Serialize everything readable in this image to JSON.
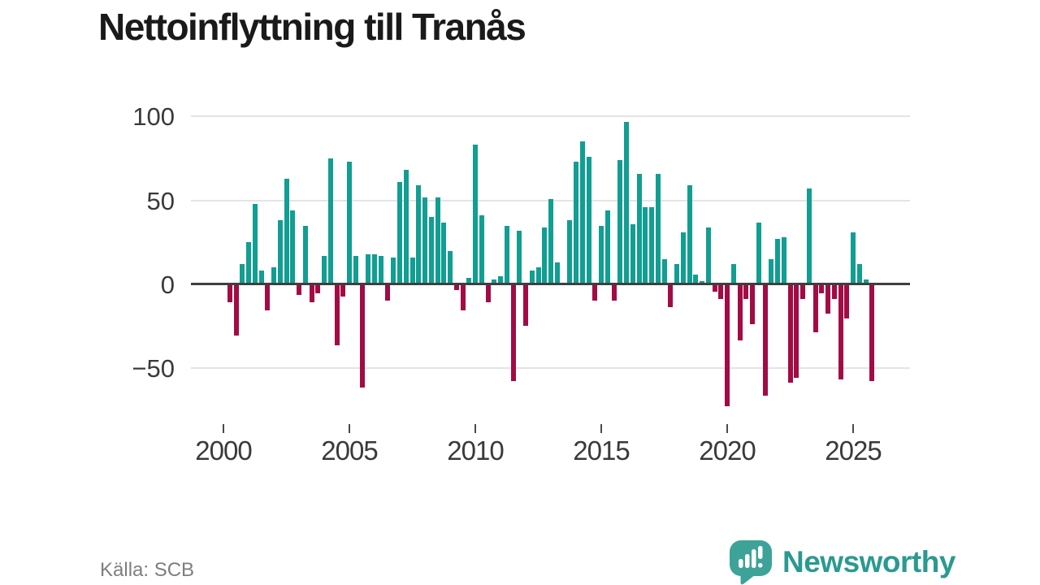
{
  "title": "Nettoinflyttning till Tranås",
  "source": {
    "label": "Källa: SCB"
  },
  "branding": {
    "name": "Newsworthy",
    "icon": "newsworthy-speech-bubble-bar-chart-icon",
    "text_color": "#2a9a90",
    "icon_color": "#3da398"
  },
  "chart_data": {
    "type": "bar",
    "title": "Nettoinflyttning till Tranås",
    "x_unit": "quarter",
    "start": "2000-Q1",
    "end": "2025-Q4",
    "values": [
      1,
      -10,
      -30,
      12,
      25,
      48,
      8,
      -15,
      10,
      38,
      63,
      44,
      -6,
      35,
      -10,
      -5,
      17,
      75,
      -36,
      -7,
      73,
      17,
      -61,
      18,
      18,
      17,
      -9,
      16,
      61,
      68,
      16,
      59,
      52,
      40,
      52,
      37,
      20,
      -3,
      -15,
      4,
      83,
      41,
      -10,
      3,
      5,
      35,
      -57,
      32,
      -24,
      8,
      10,
      34,
      51,
      13,
      1,
      38,
      73,
      85,
      76,
      -9,
      35,
      44,
      -9,
      74,
      97,
      36,
      66,
      46,
      46,
      66,
      15,
      -13,
      12,
      31,
      59,
      6,
      2,
      34,
      -4,
      -8,
      -72,
      12,
      -33,
      -8,
      -23,
      37,
      -66,
      15,
      27,
      28,
      -58,
      -55,
      -8,
      57,
      -28,
      -5,
      -17,
      -8,
      -56,
      -20,
      31,
      12,
      3,
      -57
    ],
    "series_name": "Nettoinflyttning per kvartal",
    "positive_color": "#119e93",
    "negative_color": "#a30b45",
    "ylim": [
      -75,
      105
    ],
    "y_ticks": [
      100,
      50,
      0,
      -50
    ],
    "y_tick_labels": [
      "100",
      "50",
      "0",
      "−50"
    ],
    "y_gridlines": [
      100,
      50,
      -50
    ],
    "x_ticks": [
      {
        "label": "2000",
        "quarter_index": 0
      },
      {
        "label": "2005",
        "quarter_index": 20
      },
      {
        "label": "2010",
        "quarter_index": 40
      },
      {
        "label": "2015",
        "quarter_index": 60
      },
      {
        "label": "2020",
        "quarter_index": 80
      },
      {
        "label": "2025",
        "quarter_index": 100
      }
    ],
    "grid": "horizontal",
    "legend": "none"
  }
}
